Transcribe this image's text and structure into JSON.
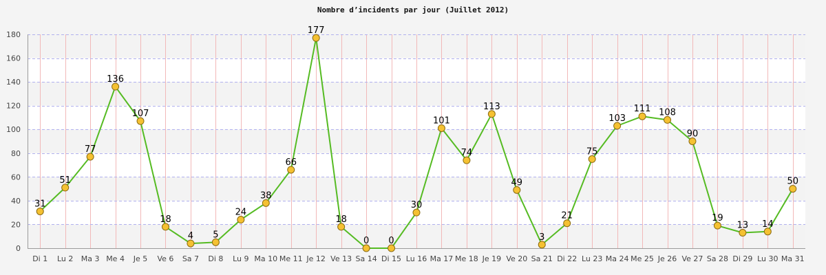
{
  "chart_data": {
    "type": "line",
    "title": "Nombre d’incidents par jour (Juillet 2012)",
    "xlabel": "",
    "ylabel": "",
    "ylim": [
      0,
      180
    ],
    "yticks": [
      0,
      20,
      40,
      60,
      80,
      100,
      120,
      140,
      160,
      180
    ],
    "grid": true,
    "categories": [
      "Di 1",
      "Lu 2",
      "Ma 3",
      "Me 4",
      "Je 5",
      "Ve 6",
      "Sa 7",
      "Di 8",
      "Lu 9",
      "Ma 10",
      "Me 11",
      "Je 12",
      "Ve 13",
      "Sa 14",
      "Di 15",
      "Lu 16",
      "Ma 17",
      "Me 18",
      "Je 19",
      "Ve 20",
      "Sa 21",
      "Di 22",
      "Lu 23",
      "Ma 24",
      "Me 25",
      "Je 26",
      "Ve 27",
      "Sa 28",
      "Di 29",
      "Lu 30",
      "Ma 31"
    ],
    "series": [
      {
        "values": [
          31,
          51,
          77,
          136,
          107,
          18,
          4,
          5,
          24,
          38,
          66,
          177,
          18,
          0,
          0,
          30,
          101,
          74,
          113,
          49,
          3,
          21,
          75,
          103,
          111,
          108,
          90,
          19,
          13,
          14,
          50
        ]
      }
    ],
    "colors": {
      "line": "#55bb22",
      "marker_fill": "#f5c132",
      "marker_stroke": "#8a6a10",
      "vertical_grid": "#f2b8b8",
      "horizontal_grid": "#b0b0ee",
      "band_light": "#ffffff",
      "band_dark": "#f3f3f3"
    }
  }
}
